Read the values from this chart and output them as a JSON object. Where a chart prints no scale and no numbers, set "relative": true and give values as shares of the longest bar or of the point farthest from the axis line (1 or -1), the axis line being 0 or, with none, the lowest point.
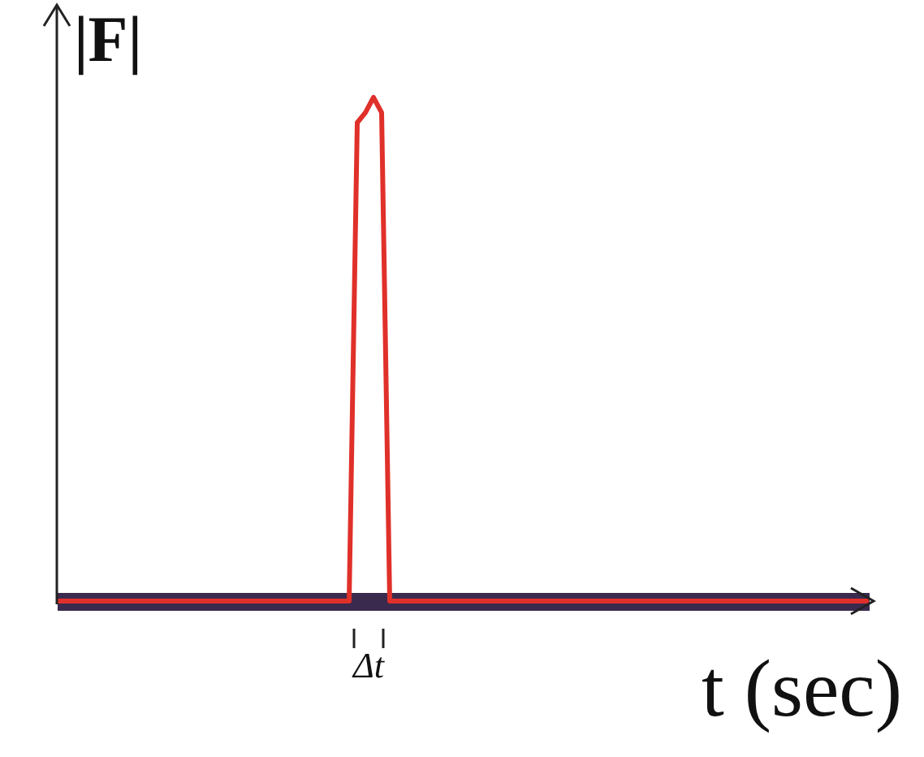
{
  "chart_data": {
    "type": "line",
    "relative": true,
    "ylabel": "|F|",
    "xlabel": "t (sec)",
    "annotations": [
      "Δt"
    ],
    "categories": [
      null,
      null,
      null,
      null,
      null,
      null,
      null,
      null,
      null,
      null,
      null,
      null,
      null,
      null,
      null,
      null,
      null,
      null,
      null,
      null,
      null,
      null,
      null,
      null,
      null,
      null,
      null,
      null,
      null,
      null,
      null,
      null,
      null,
      null,
      null,
      null,
      null,
      null,
      null,
      null,
      null,
      null,
      null,
      null,
      null,
      null,
      null,
      null,
      null,
      null,
      null,
      null,
      null,
      null,
      null,
      null,
      null,
      null,
      null,
      null,
      null,
      null,
      null,
      null,
      null,
      null,
      null,
      null,
      null,
      null,
      null,
      null,
      null,
      null,
      null,
      null,
      null,
      null,
      null,
      null,
      null,
      null,
      null,
      null,
      null,
      null,
      null,
      null,
      null,
      null,
      null,
      null,
      null,
      null,
      null,
      null,
      null,
      null,
      null,
      null,
      null
    ],
    "series": [
      {
        "color": "#e0302a",
        "values": [
          0,
          0,
          0,
          0,
          0,
          0,
          0,
          0,
          0,
          0,
          0,
          0,
          0,
          0,
          0,
          0,
          0,
          0,
          0,
          0,
          0,
          0,
          0,
          0,
          0,
          0,
          0,
          0,
          0,
          0,
          0,
          0,
          0,
          0,
          0,
          0,
          0,
          0.95,
          0.97,
          1,
          0.97,
          0,
          0,
          0,
          0,
          0,
          0,
          0,
          0,
          0,
          0,
          0,
          0,
          0,
          0,
          0,
          0,
          0,
          0,
          0,
          0,
          0,
          0,
          0,
          0,
          0,
          0,
          0,
          0,
          0,
          0,
          0,
          0,
          0,
          0,
          0,
          0,
          0,
          0,
          0,
          0,
          0,
          0,
          0,
          0,
          0,
          0,
          0,
          0,
          0,
          0,
          0,
          0,
          0,
          0,
          0,
          0,
          0,
          0,
          0,
          0
        ]
      }
    ]
  }
}
